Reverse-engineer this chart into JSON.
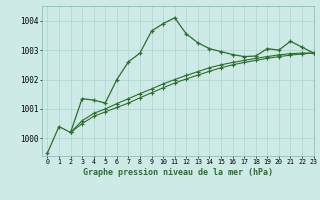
{
  "title": "Graphe pression niveau de la mer (hPa)",
  "background_color": "#ceeae7",
  "grid_color": "#a8d5d1",
  "line_color": "#2d6e2d",
  "xlim": [
    -0.5,
    23
  ],
  "ylim": [
    999.4,
    1004.5
  ],
  "yticks": [
    1000,
    1001,
    1002,
    1003,
    1004
  ],
  "xticks": [
    0,
    1,
    2,
    3,
    4,
    5,
    6,
    7,
    8,
    9,
    10,
    11,
    12,
    13,
    14,
    15,
    16,
    17,
    18,
    19,
    20,
    21,
    22,
    23
  ],
  "series1_x": [
    0,
    1,
    2,
    3,
    4,
    5,
    6,
    7,
    8,
    9,
    10,
    11,
    12,
    13,
    14,
    15,
    16,
    17,
    18,
    19,
    20,
    21,
    22,
    23
  ],
  "series1_y": [
    999.5,
    1000.4,
    1000.2,
    1001.35,
    1001.3,
    1001.2,
    1002.0,
    1002.6,
    1002.9,
    1003.65,
    1003.9,
    1004.1,
    1003.55,
    1003.25,
    1003.05,
    1002.95,
    1002.85,
    1002.78,
    1002.8,
    1003.05,
    1003.0,
    1003.3,
    1003.1,
    1002.9
  ],
  "series2_x": [
    2,
    3,
    4,
    5,
    6,
    7,
    8,
    9,
    10,
    11,
    12,
    13,
    14,
    15,
    16,
    17,
    18,
    19,
    20,
    21,
    22,
    23
  ],
  "series2_y": [
    1000.2,
    1000.5,
    1000.75,
    1000.9,
    1001.05,
    1001.2,
    1001.38,
    1001.55,
    1001.72,
    1001.88,
    1002.02,
    1002.15,
    1002.28,
    1002.4,
    1002.5,
    1002.58,
    1002.65,
    1002.72,
    1002.78,
    1002.83,
    1002.87,
    1002.9
  ],
  "series3_x": [
    2,
    3,
    4,
    5,
    6,
    7,
    8,
    9,
    10,
    11,
    12,
    13,
    14,
    15,
    16,
    17,
    18,
    19,
    20,
    21,
    22,
    23
  ],
  "series3_y": [
    1000.2,
    1000.6,
    1000.85,
    1001.0,
    1001.18,
    1001.35,
    1001.52,
    1001.68,
    1001.85,
    1002.0,
    1002.14,
    1002.27,
    1002.4,
    1002.5,
    1002.58,
    1002.65,
    1002.72,
    1002.78,
    1002.84,
    1002.88,
    1002.9,
    1002.9
  ]
}
